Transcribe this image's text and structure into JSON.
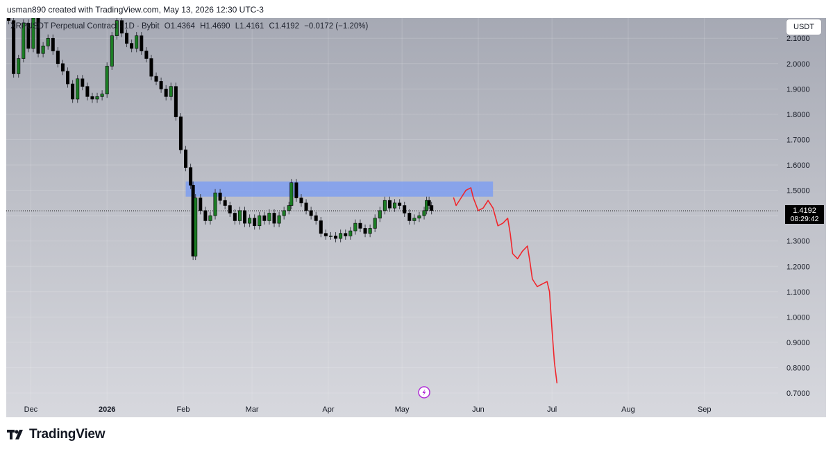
{
  "header": {
    "creator": "usman890 created with TradingView.com, May 13, 2026 12:30 UTC-3"
  },
  "legend": {
    "symbol": "XRPUSDT Perpetual Contract · 1D · Bybit",
    "open": "O1.4364",
    "high": "H1.4690",
    "low": "L1.4161",
    "close": "C1.4192",
    "change": "−0.0172 (−1.20%)"
  },
  "currency_button": "USDT",
  "last_price": {
    "value": "1.4192",
    "countdown": "08:29:42"
  },
  "brand": {
    "name": "TradingView"
  },
  "colors": {
    "up": "#1b7d24",
    "down": "#000000",
    "zone": "#7b9cf3",
    "projection": "#f0262c"
  },
  "chart_data": {
    "type": "candlestick",
    "y_axis": {
      "ticks": [
        "2.1000",
        "2.0000",
        "1.9000",
        "1.8000",
        "1.7000",
        "1.6000",
        "1.5000",
        "1.4000",
        "1.3000",
        "1.2000",
        "1.1000",
        "1.0000",
        "0.9000",
        "0.8000",
        "0.7000"
      ],
      "range": [
        0.67,
        2.18
      ]
    },
    "x_axis": {
      "ticks": [
        {
          "label": "Dec",
          "date": "2025-12-01"
        },
        {
          "label": "2026",
          "date": "2026-01-01",
          "bold": true
        },
        {
          "label": "Feb",
          "date": "2026-02-01"
        },
        {
          "label": "Mar",
          "date": "2026-03-01"
        },
        {
          "label": "Apr",
          "date": "2026-04-01"
        },
        {
          "label": "May",
          "date": "2026-05-01"
        },
        {
          "label": "Jun",
          "date": "2026-06-01"
        },
        {
          "label": "Jul",
          "date": "2026-07-01"
        },
        {
          "label": "Aug",
          "date": "2026-08-01"
        },
        {
          "label": "Sep",
          "date": "2026-09-01"
        }
      ],
      "range": [
        "2025-11-21",
        "2026-10-01"
      ]
    },
    "grid": true,
    "close_series": [
      [
        "2025-11-22",
        2.17
      ],
      [
        "2025-11-24",
        1.96
      ],
      [
        "2025-11-26",
        2.02
      ],
      [
        "2025-11-28",
        2.16
      ],
      [
        "2025-11-30",
        2.06
      ],
      [
        "2025-12-02",
        2.18
      ],
      [
        "2025-12-04",
        2.04
      ],
      [
        "2025-12-06",
        2.07
      ],
      [
        "2025-12-08",
        2.1
      ],
      [
        "2025-12-10",
        2.05
      ],
      [
        "2025-12-12",
        2.0
      ],
      [
        "2025-12-14",
        1.97
      ],
      [
        "2025-12-16",
        1.92
      ],
      [
        "2025-12-18",
        1.86
      ],
      [
        "2025-12-20",
        1.94
      ],
      [
        "2025-12-22",
        1.91
      ],
      [
        "2025-12-24",
        1.87
      ],
      [
        "2025-12-26",
        1.86
      ],
      [
        "2025-12-28",
        1.87
      ],
      [
        "2025-12-30",
        1.88
      ],
      [
        "2026-01-01",
        1.99
      ],
      [
        "2026-01-03",
        2.11
      ],
      [
        "2026-01-05",
        2.17
      ],
      [
        "2026-01-07",
        2.12
      ],
      [
        "2026-01-09",
        2.08
      ],
      [
        "2026-01-11",
        2.06
      ],
      [
        "2026-01-13",
        2.11
      ],
      [
        "2026-01-15",
        2.05
      ],
      [
        "2026-01-17",
        2.02
      ],
      [
        "2026-01-19",
        1.95
      ],
      [
        "2026-01-21",
        1.93
      ],
      [
        "2026-01-23",
        1.9
      ],
      [
        "2026-01-25",
        1.87
      ],
      [
        "2026-01-27",
        1.91
      ],
      [
        "2026-01-29",
        1.79
      ],
      [
        "2026-01-31",
        1.66
      ],
      [
        "2026-02-02",
        1.59
      ],
      [
        "2026-02-04",
        1.52
      ],
      [
        "2026-02-05",
        1.24
      ],
      [
        "2026-02-06",
        1.47
      ],
      [
        "2026-02-08",
        1.42
      ],
      [
        "2026-02-10",
        1.38
      ],
      [
        "2026-02-12",
        1.4
      ],
      [
        "2026-02-14",
        1.49
      ],
      [
        "2026-02-16",
        1.46
      ],
      [
        "2026-02-18",
        1.44
      ],
      [
        "2026-02-20",
        1.41
      ],
      [
        "2026-02-22",
        1.38
      ],
      [
        "2026-02-24",
        1.42
      ],
      [
        "2026-02-26",
        1.37
      ],
      [
        "2026-02-28",
        1.39
      ],
      [
        "2026-03-02",
        1.36
      ],
      [
        "2026-03-04",
        1.4
      ],
      [
        "2026-03-06",
        1.38
      ],
      [
        "2026-03-08",
        1.41
      ],
      [
        "2026-03-10",
        1.37
      ],
      [
        "2026-03-12",
        1.4
      ],
      [
        "2026-03-14",
        1.42
      ],
      [
        "2026-03-16",
        1.44
      ],
      [
        "2026-03-17",
        1.53
      ],
      [
        "2026-03-19",
        1.47
      ],
      [
        "2026-03-21",
        1.45
      ],
      [
        "2026-03-23",
        1.42
      ],
      [
        "2026-03-25",
        1.4
      ],
      [
        "2026-03-27",
        1.38
      ],
      [
        "2026-03-29",
        1.33
      ],
      [
        "2026-03-31",
        1.32
      ],
      [
        "2026-04-02",
        1.32
      ],
      [
        "2026-04-04",
        1.31
      ],
      [
        "2026-04-06",
        1.33
      ],
      [
        "2026-04-08",
        1.32
      ],
      [
        "2026-04-10",
        1.34
      ],
      [
        "2026-04-12",
        1.37
      ],
      [
        "2026-04-14",
        1.35
      ],
      [
        "2026-04-16",
        1.33
      ],
      [
        "2026-04-18",
        1.35
      ],
      [
        "2026-04-20",
        1.39
      ],
      [
        "2026-04-22",
        1.42
      ],
      [
        "2026-04-24",
        1.46
      ],
      [
        "2026-04-26",
        1.43
      ],
      [
        "2026-04-28",
        1.45
      ],
      [
        "2026-04-30",
        1.44
      ],
      [
        "2026-05-02",
        1.41
      ],
      [
        "2026-05-04",
        1.38
      ],
      [
        "2026-05-06",
        1.39
      ],
      [
        "2026-05-08",
        1.4
      ],
      [
        "2026-05-10",
        1.42
      ],
      [
        "2026-05-11",
        1.46
      ],
      [
        "2026-05-12",
        1.44
      ],
      [
        "2026-05-13",
        1.42
      ]
    ],
    "annotations": {
      "resistance_zone": {
        "from": "2026-02-02",
        "to": "2026-06-07",
        "low": 1.475,
        "high": 1.535
      },
      "projection_path": [
        [
          "2026-05-22",
          1.47
        ],
        [
          "2026-05-23",
          1.44
        ],
        [
          "2026-05-25",
          1.47
        ],
        [
          "2026-05-27",
          1.5
        ],
        [
          "2026-05-29",
          1.51
        ],
        [
          "2026-05-30",
          1.47
        ],
        [
          "2026-06-01",
          1.42
        ],
        [
          "2026-06-03",
          1.43
        ],
        [
          "2026-06-05",
          1.46
        ],
        [
          "2026-06-07",
          1.43
        ],
        [
          "2026-06-09",
          1.36
        ],
        [
          "2026-06-11",
          1.37
        ],
        [
          "2026-06-13",
          1.39
        ],
        [
          "2026-06-14",
          1.33
        ],
        [
          "2026-06-15",
          1.25
        ],
        [
          "2026-06-17",
          1.23
        ],
        [
          "2026-06-19",
          1.26
        ],
        [
          "2026-06-21",
          1.28
        ],
        [
          "2026-06-22",
          1.22
        ],
        [
          "2026-06-23",
          1.15
        ],
        [
          "2026-06-25",
          1.12
        ],
        [
          "2026-06-27",
          1.13
        ],
        [
          "2026-06-29",
          1.14
        ],
        [
          "2026-06-30",
          1.1
        ],
        [
          "2026-07-01",
          0.95
        ],
        [
          "2026-07-02",
          0.82
        ],
        [
          "2026-07-03",
          0.74
        ]
      ],
      "current_price_line": 1.4192
    }
  }
}
